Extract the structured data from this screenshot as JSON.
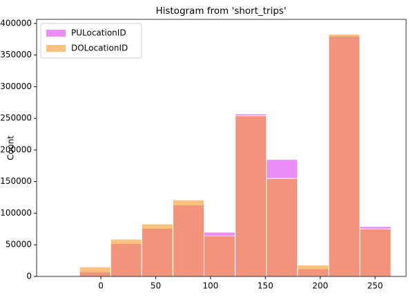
{
  "chart_data": {
    "type": "histogram",
    "title": "Histogram from 'short_trips'",
    "ylabel": "Count",
    "bins": [
      -19.5,
      8.9,
      37.3,
      65.7,
      94.1,
      122.5,
      150.9,
      179.3,
      207.7,
      236.1,
      264.5
    ],
    "series": [
      {
        "name": "PULocationID",
        "color": "#e040f0",
        "values": [
          7000,
          52000,
          76000,
          113000,
          70000,
          257000,
          185000,
          12000,
          380000,
          79000
        ]
      },
      {
        "name": "DOLocationID",
        "color": "#f59a2a",
        "values": [
          15000,
          59000,
          83000,
          121000,
          64000,
          254000,
          155000,
          18000,
          383000,
          75000
        ]
      }
    ],
    "opacity": 0.6,
    "xlim": [
      -58.6,
      278.3
    ],
    "xticks": [
      0,
      50,
      100,
      150,
      200,
      250
    ],
    "ylim": [
      0,
      406500
    ],
    "yticks": [
      0,
      50000,
      100000,
      150000,
      200000,
      250000,
      300000,
      350000,
      400000
    ],
    "legend": "upper-left"
  }
}
